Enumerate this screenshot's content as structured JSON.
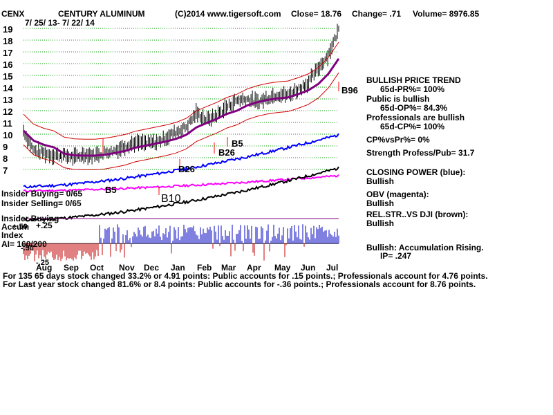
{
  "header": {
    "ticker": "CENX",
    "name": "CENTURY ALUMINUM",
    "copyright": "(C)2014 www.tigersoft.com",
    "close": "Close= 18.76",
    "change": "Change= .71",
    "volume": "Volume= 8976.85",
    "daterange": "7/ 25/ 13- 7/ 22/ 14"
  },
  "y_ticks": [
    "19",
    "18",
    "17",
    "16",
    "15",
    "14",
    "13",
    "12",
    "11",
    "10",
    "9",
    "8",
    "7"
  ],
  "months": [
    "Aug",
    "Sep",
    "Oct",
    "Nov",
    "Dec",
    "Jan",
    "Feb",
    "Mar",
    "Apr",
    "May",
    "Jun",
    "Jul"
  ],
  "signals": {
    "b5a": "B5",
    "b5b": "B5",
    "b26a": "B26",
    "b26b": "B26",
    "b10": "B10",
    "b96": "B96"
  },
  "left_panel": {
    "insider_buying": "Insider Buying= 0/65",
    "insider_selling": "Insider Selling= 0/65",
    "insider_buying2": "Insider Buying",
    "plus50": "+.50",
    "accum": "Accum",
    "plus25": "+.25",
    "index": "Index",
    "ai": "AI= 160/200",
    "minus25": "-.25",
    "minus50": "-.50"
  },
  "right_panel": {
    "trend": "BULLISH PRICE TREND",
    "pr": "65d-PR%= 100%",
    "public": "Public is bullish",
    "op": "65d-OP%= 84.3%",
    "prof": "Professionals are bullish",
    "cp": "65d-CP%= 100%",
    "cpvspr": "CP%vsPr%=  0%",
    "strength": "Strength Profess/Pub= 31.7",
    "closing_power": "CLOSING POWER (blue):",
    "cp_status": "Bullish",
    "obv": "OBV (magenta):",
    "obv_status": "Bullish",
    "relstr": "REL.STR..VS DJI (brown):",
    "relstr_status": "Bullish",
    "accum_rising": "Bullish: Accumulation Rising.",
    "ip": "IP=  .247"
  },
  "footer": {
    "line1": "For 135 65 days stock changed  33.2% or  4.91 points:  Public accounts for  .15 points.;  Professionals account for  4.76 points.",
    "line2": "For Last year stock changed  81.6% or  8.4 points:  Public accounts for -.36 points.;  Professionals account for  8.76 points."
  },
  "colors": {
    "grid": "#00a000",
    "price": "#000000",
    "bands": "#d00000",
    "ma": "#800080",
    "closing_power": "#0000ff",
    "obv": "#ff00ff",
    "relstr": "#000000",
    "accum_pos": "#0000c0",
    "accum_neg": "#c00000",
    "signal": "#ff0000"
  },
  "chart_data": {
    "type": "line",
    "title": "CENTURY ALUMINUM",
    "x_range": [
      "7/25/13",
      "7/22/14"
    ],
    "ylim": [
      7,
      19
    ],
    "series": [
      {
        "name": "Close",
        "values": [
          10.3,
          8.6,
          8.4,
          8.2,
          8.2,
          8.0,
          8.3,
          8.2,
          8.5,
          8.6,
          9.0,
          9.3,
          9.2,
          9.3,
          9.7,
          10.2,
          10.6,
          11.8,
          11.2,
          11.6,
          12.3,
          12.9,
          13.0,
          12.7,
          13.1,
          13.4,
          13.3,
          13.8,
          14.4,
          15.6,
          16.8,
          18.9
        ]
      },
      {
        "name": "CLOSING POWER (blue)",
        "values": []
      },
      {
        "name": "OBV (magenta)",
        "values": []
      },
      {
        "name": "REL.STR..VS DJI (brown)",
        "values": []
      }
    ]
  }
}
